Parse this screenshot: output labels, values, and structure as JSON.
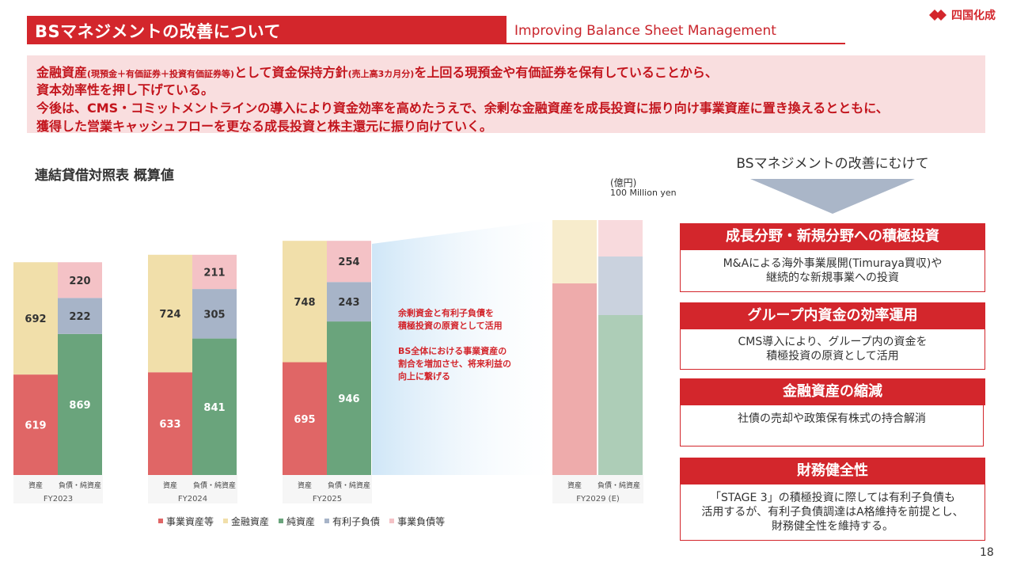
{
  "header": {
    "title": "BSマネジメントの改善について",
    "subtitle_en": "Improving Balance Sheet Management",
    "logo_text": "四国化成",
    "accent_color": "#d3262c"
  },
  "summary": {
    "line1_a": "金融資産",
    "line1_b": "(現預金＋有価証券＋投資有価証券等)",
    "line1_c": "として資金保持方針",
    "line1_d": "(売上高3カ月分)",
    "line1_e": "を上回る現預金や有価証券を保有していることから、",
    "line2": "資本効率性を押し下げている。",
    "line3": "今後は、CMS・コミットメントラインの導入により資金効率を高めたうえで、余剰な金融資産を成長投資に振り向け事業資産に置き換えるとともに、",
    "line4": "獲得した営業キャッシュフローを更なる成長投資と株主還元に振り向けていく。"
  },
  "chart_title": "連結貸借対照表 概算値",
  "unit_ja": "(億円)",
  "unit_en": "100 Million yen",
  "notes": {
    "note1_l1": "余剰資金と有利子負債を",
    "note1_l2": "積極投資の原資として活用",
    "note2_l1": "BS全体における事業資産の",
    "note2_l2": "割合を増加させ、将来利益の",
    "note2_l3": "向上に繋げる"
  },
  "chart_data": {
    "type": "bar",
    "stacked": true,
    "categories": [
      "FY2023",
      "FY2024",
      "FY2025",
      "FY2029 (E)"
    ],
    "bar_labels": [
      "資産",
      "負債・純資産"
    ],
    "series": [
      {
        "name": "事業資産等",
        "stack": "資産",
        "color": "#e06666",
        "values": [
          619,
          633,
          695,
          null
        ]
      },
      {
        "name": "金融資産",
        "stack": "資産",
        "color": "#f1dfaa",
        "values": [
          692,
          724,
          748,
          null
        ]
      },
      {
        "name": "純資産",
        "stack": "負債・純資産",
        "color": "#6aa47c",
        "values": [
          869,
          841,
          946,
          null
        ]
      },
      {
        "name": "有利子負債",
        "stack": "負債・純資産",
        "color": "#a7b4c8",
        "values": [
          222,
          305,
          243,
          null
        ]
      },
      {
        "name": "事業負債等",
        "stack": "負債・純資産",
        "color": "#f4c2c6",
        "values": [
          220,
          211,
          254,
          null
        ]
      }
    ],
    "legend": [
      "事業資産等",
      "金融資産",
      "純資産",
      "有利子負債",
      "事業負債等"
    ],
    "legend_position": "bottom"
  },
  "right_panel": {
    "title": "BSマネジメントの改善にむけて",
    "items": [
      {
        "heading": "成長分野・新規分野への積極投資",
        "body_l1": "M&Aによる海外事業展開(Timuraya買収)や",
        "body_l2": "継続的な新規事業への投資",
        "body_l3": ""
      },
      {
        "heading": "グループ内資金の効率運用",
        "body_l1": "CMS導入により、グループ内の資金を",
        "body_l2": "積極投資の原資として活用",
        "body_l3": ""
      },
      {
        "heading": "金融資産の縮減",
        "body_l1": "社債の売却や政策保有株式の持合解消",
        "body_l2": "",
        "body_l3": ""
      },
      {
        "heading": "財務健全性",
        "body_l1": "「STAGE 3」の積極投資に際しては有利子負債も",
        "body_l2": "活用するが、有利子負債調達はA格維持を前提とし、",
        "body_l3": "財務健全性を維持する。"
      }
    ]
  },
  "page_number": "18"
}
